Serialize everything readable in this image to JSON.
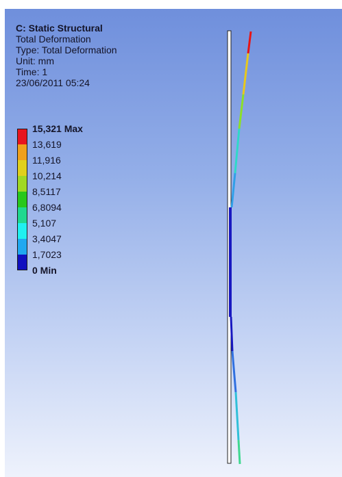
{
  "info": {
    "title": "C: Static Structural",
    "result": "Total Deformation",
    "type": "Type: Total Deformation",
    "unit": "Unit: mm",
    "time": "Time: 1",
    "timestamp": "23/06/2011 05:24"
  },
  "legend": {
    "labels": [
      "15,321 Max",
      "13,619",
      "11,916",
      "10,214",
      "8,5117",
      "6,8094",
      "5,107",
      "3,4047",
      "1,7023",
      "0 Min"
    ],
    "colors": [
      "#e8141e",
      "#f0a01c",
      "#e0d01c",
      "#a0d824",
      "#28c81c",
      "#20d890",
      "#20f0f0",
      "#20a8f0",
      "#1010c0"
    ]
  },
  "model": {
    "undeformed_outline": "#222222",
    "deformed_upper_colors": [
      "#e81414",
      "#e8c81c",
      "#8ce028",
      "#30d8c8",
      "#30a0e8",
      "#1818c0"
    ],
    "deformed_lower_colors": [
      "#1818c0",
      "#3070e0",
      "#30c0d8",
      "#40d890"
    ]
  }
}
